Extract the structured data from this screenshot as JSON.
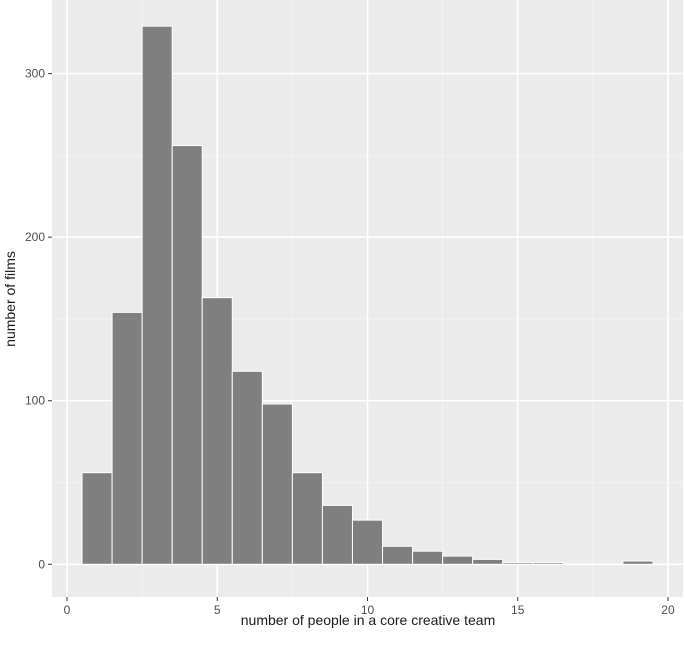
{
  "chart_data": {
    "type": "bar",
    "title": "",
    "xlabel": "number of people in a core creative team",
    "ylabel": "number of films",
    "xlim": [
      -0.5,
      20.5
    ],
    "ylim": [
      -20,
      345
    ],
    "x_ticks": [
      0,
      5,
      10,
      15,
      20
    ],
    "y_ticks": [
      0,
      100,
      200,
      300
    ],
    "bin_width": 1,
    "bins": [
      {
        "x": 1,
        "count": 56
      },
      {
        "x": 2,
        "count": 154
      },
      {
        "x": 3,
        "count": 329
      },
      {
        "x": 4,
        "count": 256
      },
      {
        "x": 5,
        "count": 163
      },
      {
        "x": 6,
        "count": 118
      },
      {
        "x": 7,
        "count": 98
      },
      {
        "x": 8,
        "count": 56
      },
      {
        "x": 9,
        "count": 36
      },
      {
        "x": 10,
        "count": 27
      },
      {
        "x": 11,
        "count": 11
      },
      {
        "x": 12,
        "count": 8
      },
      {
        "x": 13,
        "count": 5
      },
      {
        "x": 14,
        "count": 3
      },
      {
        "x": 15,
        "count": 1
      },
      {
        "x": 16,
        "count": 1
      },
      {
        "x": 17,
        "count": 0
      },
      {
        "x": 18,
        "count": 0
      },
      {
        "x": 19,
        "count": 2
      }
    ],
    "colors": {
      "panel_background": "#ebebeb",
      "grid_major": "#ffffff",
      "grid_minor": "#f5f5f5",
      "bar_fill": "#7f7f7f",
      "bar_outline": "#ffffff"
    },
    "grid": true,
    "legend": "none"
  }
}
